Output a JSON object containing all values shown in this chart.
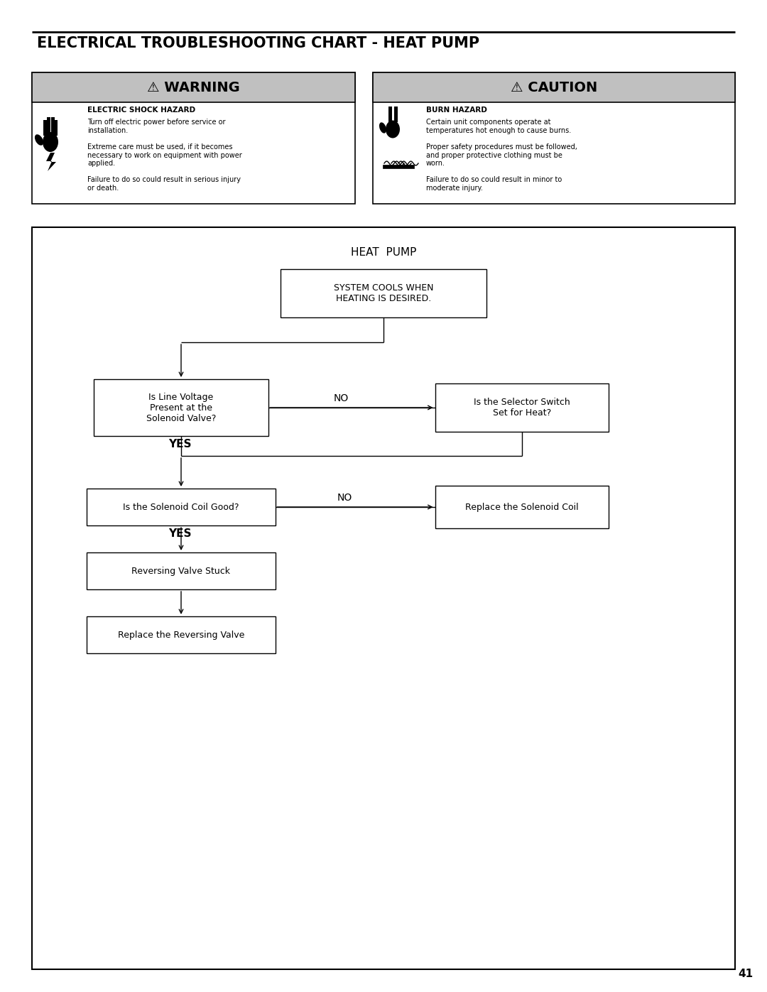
{
  "title": "ELECTRICAL TROUBLESHOOTING CHART - HEAT PUMP",
  "page_number": "41",
  "bg_color": "#ffffff",
  "warning_header": "⚠ WARNING",
  "warning_title": "ELECTRIC SHOCK HAZARD",
  "warning_text1": "Turn off electric power before service or\ninstallation.",
  "warning_text2": "Extreme care must be used, if it becomes\nnecessary to work on equipment with power\napplied.",
  "warning_text3": "Failure to do so could result in serious injury\nor death.",
  "caution_header": "⚠ CAUTION",
  "caution_title": "BURN HAZARD",
  "caution_text1": "Certain unit components operate at\ntemperatures hot enough to cause burns.",
  "caution_text2": "Proper safety procedures must be followed,\nand proper protective clothing must be\nworn.",
  "caution_text3": "Failure to do so could result in minor to\nmoderate injury.",
  "flowchart_title": "HEAT  PUMP",
  "box1_text": "SYSTEM COOLS WHEN\nHEATING IS DESIRED.",
  "box2_text": "Is Line Voltage\nPresent at the\nSolenoid Valve?",
  "box3_text": "Is the Selector Switch\nSet for Heat?",
  "box4_text": "Is the Solenoid Coil Good?",
  "box5_text": "Replace the Solenoid Coil",
  "box6_text": "Reversing Valve Stuck",
  "box7_text": "Replace the Reversing Valve",
  "header_gray": "#c0c0c0",
  "box_fill": "#ffffff",
  "box_edge": "#000000"
}
